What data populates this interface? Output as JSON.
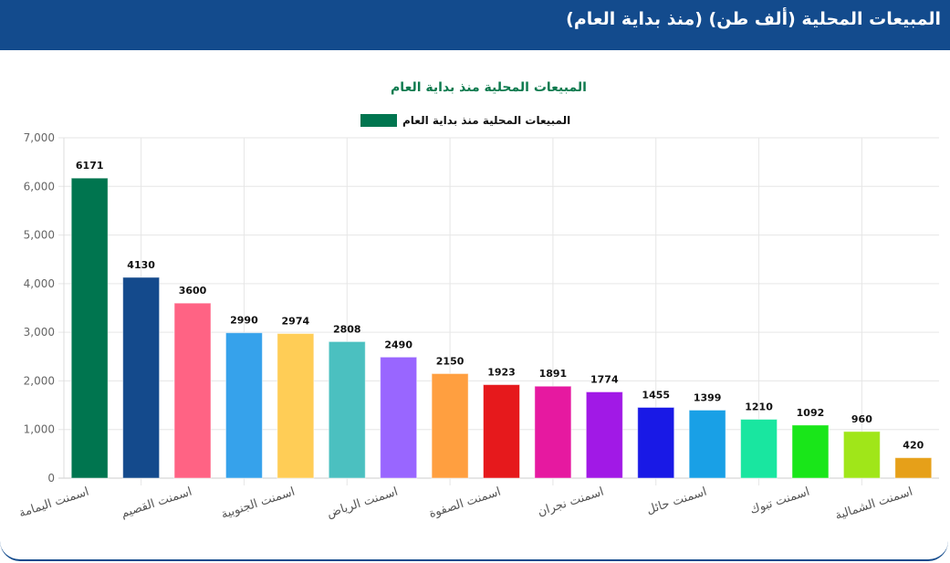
{
  "header": {
    "title": "المبيعات المحلية (ألف طن) (منذ بداية العام)"
  },
  "chart_data": {
    "type": "bar",
    "title": "المبيعات المحلية منذ بداية العام",
    "legend": {
      "position": "top",
      "entries": [
        "المبيعات المحلية منذ بداية العام"
      ]
    },
    "categories": [
      "اسمنت اليمامة",
      "",
      "اسمنت القصيم",
      "",
      "اسمنت الجنوبية",
      "",
      "اسمنت الرياض",
      "",
      "اسمنت الصفوة",
      "",
      "اسمنت نجران",
      "",
      "اسمنت حائل",
      "",
      "اسمنت تبوك",
      "",
      "اسمنت الشمالية"
    ],
    "series": [
      {
        "name": "المبيعات المحلية منذ بداية العام",
        "values": [
          6171,
          4130,
          3600,
          2990,
          2974,
          2808,
          2490,
          2150,
          1923,
          1891,
          1774,
          1455,
          1399,
          1210,
          1092,
          960,
          420
        ],
        "colors": [
          "#00754f",
          "#144a8c",
          "#ff6384",
          "#36a2eb",
          "#ffcd56",
          "#4bc0c0",
          "#9966ff",
          "#ff9f40",
          "#e6191c",
          "#e619a0",
          "#a119e6",
          "#1919e6",
          "#19a0e6",
          "#19e6a0",
          "#19e619",
          "#a0e619",
          "#e6a019"
        ]
      }
    ],
    "yticks": [
      "0",
      "1,000",
      "2,000",
      "3,000",
      "4,000",
      "5,000",
      "6,000",
      "7,000"
    ],
    "ylim": [
      0,
      7000
    ],
    "grid": true,
    "data_labels": true,
    "xlabel": "",
    "ylabel": ""
  }
}
